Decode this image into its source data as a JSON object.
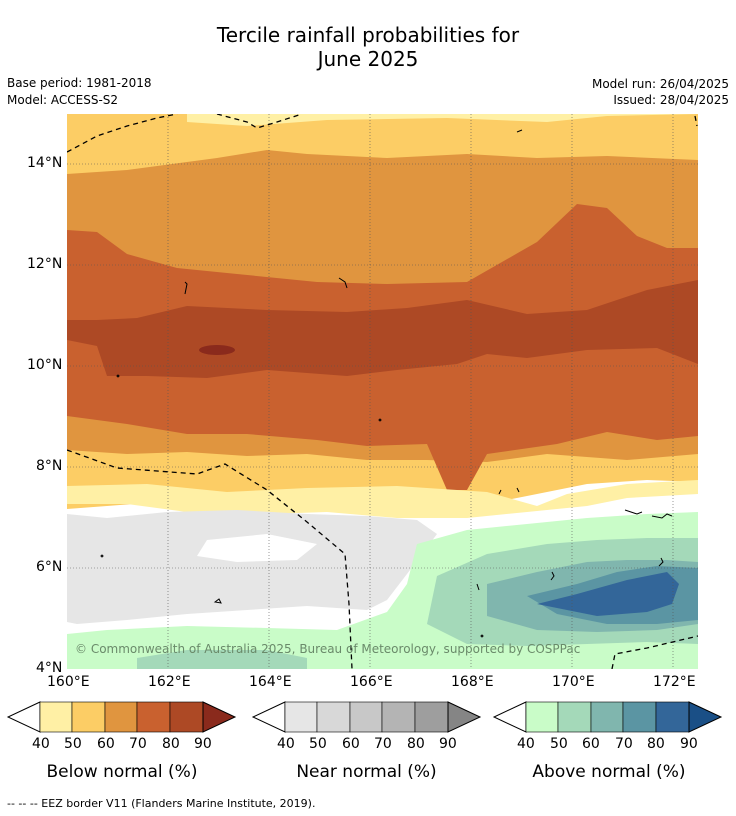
{
  "title_line1": "Tercile rainfall probabilities for",
  "title_line2": "June 2025",
  "base_period": "Base period: 1981-2018",
  "model": "Model: ACCESS-S2",
  "model_run": "Model run: 26/04/2025",
  "issued": "Issued: 28/04/2025",
  "copyright": "© Commonwealth of Australia 2025, Bureau of Meteorology, supported by COSPPac",
  "footnote": "--  --  -- EEZ border V11 (Flanders Marine Institute, 2019).",
  "map": {
    "lon_ticks": [
      "160°E",
      "162°E",
      "164°E",
      "166°E",
      "168°E",
      "170°E",
      "172°E"
    ],
    "lat_ticks": [
      "14°N",
      "12°N",
      "10°N",
      "8°N",
      "6°N",
      "4°N"
    ],
    "lon_range": [
      160,
      172.5
    ],
    "lat_range": [
      4,
      15
    ]
  },
  "colorbars": [
    {
      "title": "Below normal (%)",
      "ticks": [
        "40",
        "50",
        "60",
        "70",
        "80",
        "90"
      ],
      "colors": [
        "#fff0a5",
        "#fccd65",
        "#e0953f",
        "#c9612f",
        "#ad4925",
        "#8a2a1c"
      ]
    },
    {
      "title": "Near normal (%)",
      "ticks": [
        "40",
        "50",
        "60",
        "70",
        "80",
        "90"
      ],
      "colors": [
        "#e6e6e6",
        "#d8d8d8",
        "#c8c8c8",
        "#b4b4b4",
        "#9e9e9e",
        "#858585"
      ]
    },
    {
      "title": "Above normal (%)",
      "ticks": [
        "40",
        "50",
        "60",
        "70",
        "80",
        "90"
      ],
      "colors": [
        "#c9fcc8",
        "#a4d9b9",
        "#80b6ae",
        "#5b95a3",
        "#336699",
        "#1a4f86"
      ]
    }
  ]
}
